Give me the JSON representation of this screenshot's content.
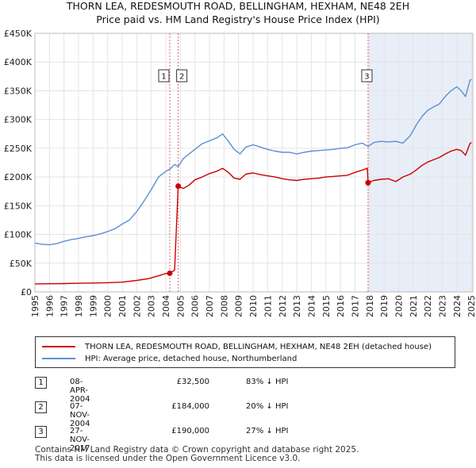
{
  "title_line1": "THORN LEA, REDESMOUTH ROAD, BELLINGHAM, HEXHAM, NE48 2EH",
  "title_line2": "Price paid vs. HM Land Registry's House Price Index (HPI)",
  "colors": {
    "property": "#cc0000",
    "hpi": "#5b8fd6",
    "shade": "#e8eef8",
    "grid": "#e4e4e4",
    "marker_line": "#e06060"
  },
  "chart_data": {
    "type": "line",
    "y_ticks": [
      "£0",
      "£50K",
      "£100K",
      "£150K",
      "£200K",
      "£250K",
      "£300K",
      "£350K",
      "£400K",
      "£450K"
    ],
    "ylim": [
      0,
      450000
    ],
    "xlim": [
      1995.0,
      2025.1
    ],
    "x_ticks": [
      "1995",
      "1996",
      "1997",
      "1998",
      "1999",
      "2000",
      "2001",
      "2002",
      "2003",
      "2004",
      "2005",
      "2006",
      "2007",
      "2008",
      "2009",
      "2010",
      "2011",
      "2012",
      "2013",
      "2014",
      "2015",
      "2016",
      "2017",
      "2018",
      "2019",
      "2020",
      "2021",
      "2022",
      "2023",
      "2024",
      "2025"
    ],
    "shade_from": 2017.9,
    "series": [
      {
        "name": "HPI: Average price, detached house, Northumberland",
        "color_key": "hpi",
        "x": [
          1995.0,
          1995.5,
          1996.0,
          1996.5,
          1997.0,
          1997.5,
          1998.0,
          1998.5,
          1999.0,
          1999.5,
          2000.0,
          2000.5,
          2001.0,
          2001.5,
          2002.0,
          2002.5,
          2003.0,
          2003.5,
          2004.0,
          2004.3,
          2004.6,
          2004.85,
          2005.2,
          2005.6,
          2006.0,
          2006.5,
          2007.0,
          2007.5,
          2007.9,
          2008.3,
          2008.7,
          2009.1,
          2009.5,
          2010.0,
          2010.5,
          2011.0,
          2011.5,
          2012.0,
          2012.5,
          2013.0,
          2013.5,
          2014.0,
          2014.5,
          2015.0,
          2015.5,
          2016.0,
          2016.5,
          2017.0,
          2017.5,
          2017.9,
          2018.3,
          2018.8,
          2019.3,
          2019.8,
          2020.3,
          2020.8,
          2021.2,
          2021.6,
          2022.0,
          2022.4,
          2022.8,
          2023.2,
          2023.6,
          2024.0,
          2024.3,
          2024.6,
          2024.9,
          2025.0
        ],
        "values": [
          85000,
          83000,
          82000,
          84000,
          88000,
          91000,
          93000,
          96000,
          98000,
          101000,
          105000,
          110000,
          118000,
          125000,
          140000,
          158000,
          178000,
          200000,
          210000,
          214000,
          222000,
          218000,
          232000,
          240000,
          248000,
          258000,
          263000,
          268000,
          275000,
          262000,
          248000,
          240000,
          252000,
          256000,
          252000,
          248000,
          245000,
          243000,
          243000,
          240000,
          243000,
          245000,
          246000,
          247000,
          248000,
          250000,
          251000,
          256000,
          259000,
          253000,
          260000,
          262000,
          261000,
          262000,
          259000,
          272000,
          290000,
          305000,
          316000,
          322000,
          327000,
          340000,
          350000,
          357000,
          350000,
          340000,
          368000,
          370000
        ]
      },
      {
        "name": "THORN LEA, REDESMOUTH ROAD, BELLINGHAM, HEXHAM, NE48 2EH (detached house)",
        "color_key": "property",
        "x": [
          1995.0,
          1996.0,
          1997.0,
          1998.0,
          1999.0,
          2000.0,
          2001.0,
          2002.0,
          2002.8,
          2003.5,
          2004.0,
          2004.27,
          2004.6,
          2004.85,
          2005.2,
          2005.6,
          2006.0,
          2006.5,
          2007.0,
          2007.5,
          2007.9,
          2008.3,
          2008.7,
          2009.1,
          2009.5,
          2010.0,
          2010.5,
          2011.0,
          2011.5,
          2012.0,
          2012.5,
          2013.0,
          2013.5,
          2014.0,
          2014.5,
          2015.0,
          2015.5,
          2016.0,
          2016.5,
          2017.0,
          2017.5,
          2017.85,
          2017.9,
          2018.3,
          2018.8,
          2019.3,
          2019.8,
          2020.3,
          2020.8,
          2021.2,
          2021.6,
          2022.0,
          2022.4,
          2022.8,
          2023.2,
          2023.6,
          2024.0,
          2024.3,
          2024.6,
          2024.9,
          2025.0
        ],
        "values": [
          14000,
          14200,
          14500,
          15000,
          15500,
          16000,
          17000,
          20000,
          23000,
          28000,
          32000,
          32500,
          38000,
          184000,
          180000,
          186000,
          195000,
          200000,
          206000,
          210000,
          215000,
          208000,
          198000,
          196000,
          205000,
          207000,
          204000,
          202000,
          200000,
          197000,
          195000,
          194000,
          196000,
          197000,
          198000,
          200000,
          201000,
          202000,
          203000,
          208000,
          212000,
          215000,
          190000,
          194000,
          196000,
          197000,
          192000,
          200000,
          205000,
          212000,
          220000,
          226000,
          230000,
          234000,
          240000,
          245000,
          248000,
          246000,
          238000,
          258000,
          260000
        ]
      }
    ],
    "sales": [
      {
        "label": "1",
        "x": 2004.27,
        "value": 32500
      },
      {
        "label": "2",
        "x": 2004.85,
        "value": 184000
      },
      {
        "label": "3",
        "x": 2017.9,
        "value": 190000
      }
    ]
  },
  "legend": {
    "property_label": "THORN LEA, REDESMOUTH ROAD, BELLINGHAM, HEXHAM, NE48 2EH (detached house)",
    "hpi_label": "HPI: Average price, detached house, Northumberland"
  },
  "sales_table": [
    {
      "num": "1",
      "date": "08-APR-2004",
      "price": "£32,500",
      "hpi": "83% ↓ HPI"
    },
    {
      "num": "2",
      "date": "07-NOV-2004",
      "price": "£184,000",
      "hpi": "20% ↓ HPI"
    },
    {
      "num": "3",
      "date": "27-NOV-2017",
      "price": "£190,000",
      "hpi": "27% ↓ HPI"
    }
  ],
  "footer_line1": "Contains HM Land Registry data © Crown copyright and database right 2025.",
  "footer_line2": "This data is licensed under the Open Government Licence v3.0."
}
